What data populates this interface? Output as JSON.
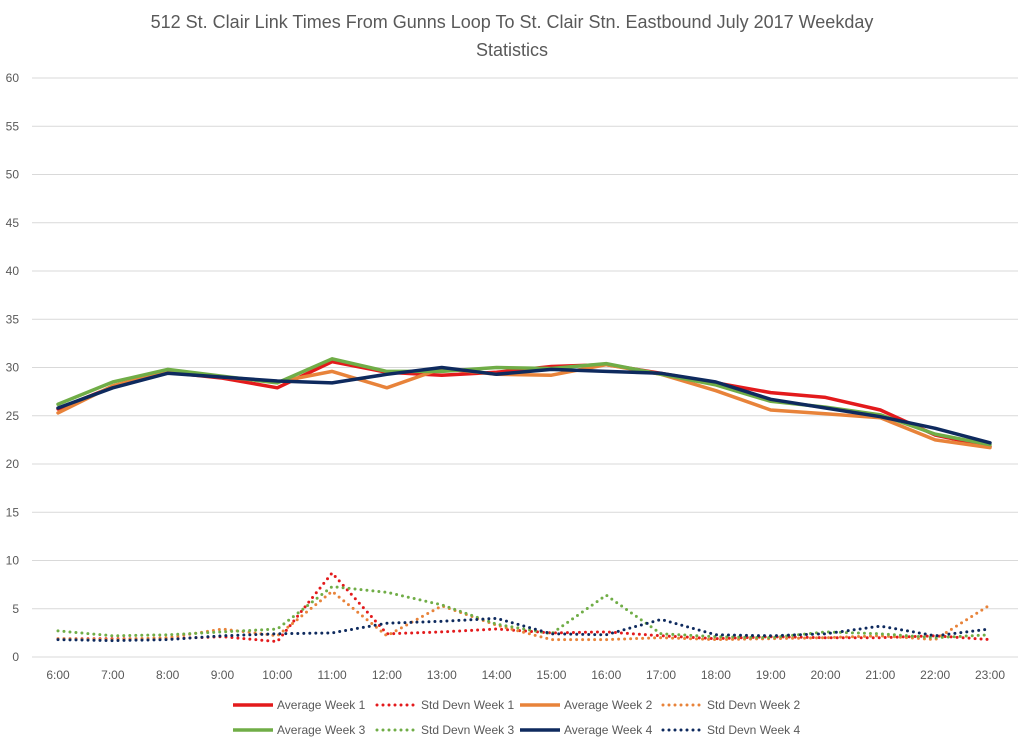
{
  "chart_data": {
    "type": "line",
    "title_lines": [
      "512 St. Clair Link Times From Gunns Loop To St. Clair Stn. Eastbound July 2017 Weekday",
      "Statistics"
    ],
    "xlabel": "",
    "ylabel": "",
    "ylim": [
      0,
      60
    ],
    "yticks": [
      0,
      5,
      10,
      15,
      20,
      25,
      30,
      35,
      40,
      45,
      50,
      55,
      60
    ],
    "grid": true,
    "legend_position": "bottom",
    "categories": [
      "6:00",
      "7:00",
      "8:00",
      "9:00",
      "10:00",
      "11:00",
      "12:00",
      "13:00",
      "14:00",
      "15:00",
      "16:00",
      "17:00",
      "18:00",
      "19:00",
      "20:00",
      "21:00",
      "22:00",
      "23:00"
    ],
    "series": [
      {
        "name": "Average Week 1",
        "style": "solid",
        "color": "#e31a1c",
        "values": [
          25.7,
          28.0,
          29.5,
          28.9,
          27.9,
          30.6,
          29.5,
          29.2,
          29.5,
          30.1,
          30.3,
          29.4,
          28.4,
          27.4,
          26.9,
          25.6,
          23.0,
          21.8
        ]
      },
      {
        "name": "Std Devn Week 1",
        "style": "dotted",
        "color": "#e31a1c",
        "values": [
          1.9,
          1.9,
          1.9,
          2.1,
          1.6,
          8.7,
          2.4,
          2.6,
          2.9,
          2.5,
          2.6,
          2.2,
          1.9,
          2.1,
          2.0,
          2.0,
          2.2,
          1.8
        ]
      },
      {
        "name": "Average Week 2",
        "style": "solid",
        "color": "#e8833a",
        "values": [
          25.3,
          28.1,
          29.6,
          29.0,
          28.5,
          29.6,
          27.9,
          29.9,
          29.3,
          29.2,
          30.3,
          29.3,
          27.6,
          25.6,
          25.2,
          24.8,
          22.5,
          21.7
        ]
      },
      {
        "name": "Std Devn Week 2",
        "style": "dotted",
        "color": "#e8833a",
        "values": [
          1.9,
          1.8,
          2.0,
          2.9,
          2.2,
          6.8,
          2.2,
          5.3,
          3.3,
          1.8,
          1.8,
          2.0,
          1.8,
          1.9,
          2.0,
          2.2,
          1.8,
          5.4
        ]
      },
      {
        "name": "Average Week 3",
        "style": "solid",
        "color": "#70ad47",
        "values": [
          26.2,
          28.5,
          29.8,
          29.1,
          28.4,
          30.9,
          29.6,
          29.6,
          30.0,
          29.9,
          30.4,
          29.3,
          28.2,
          26.5,
          25.9,
          25.1,
          23.1,
          22.0
        ]
      },
      {
        "name": "Std Devn Week 3",
        "style": "dotted",
        "color": "#70ad47",
        "values": [
          2.7,
          2.2,
          2.3,
          2.6,
          2.9,
          7.3,
          6.7,
          5.4,
          3.4,
          2.4,
          6.4,
          2.4,
          2.1,
          2.0,
          2.6,
          2.4,
          2.0,
          2.3
        ]
      },
      {
        "name": "Average Week 4",
        "style": "solid",
        "color": "#0e2a5e",
        "values": [
          25.8,
          27.9,
          29.4,
          29.0,
          28.6,
          28.4,
          29.3,
          30.0,
          29.3,
          29.8,
          29.6,
          29.4,
          28.5,
          26.7,
          25.8,
          24.9,
          23.7,
          22.2
        ]
      },
      {
        "name": "Std Devn Week 4",
        "style": "dotted",
        "color": "#0e2a5e",
        "values": [
          1.8,
          1.7,
          1.8,
          2.2,
          2.4,
          2.5,
          3.5,
          3.7,
          4.0,
          2.4,
          2.3,
          3.9,
          2.3,
          2.2,
          2.4,
          3.2,
          2.2,
          2.9
        ]
      }
    ],
    "colors": {
      "grid": "#d9d9d9",
      "axis_text": "#595959",
      "background": "#ffffff"
    }
  }
}
